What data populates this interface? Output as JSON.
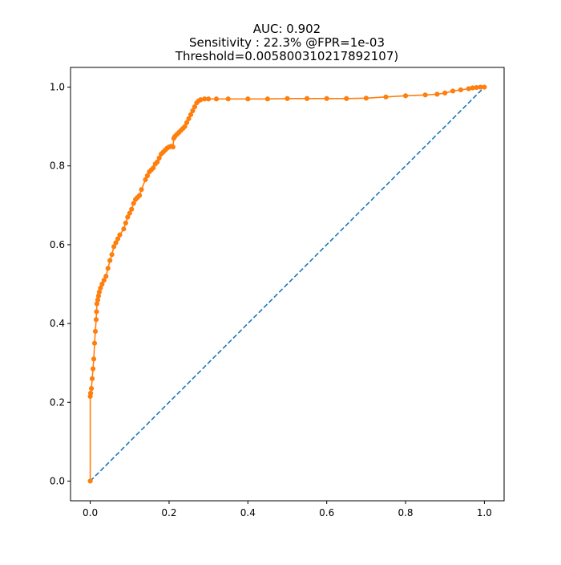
{
  "chart_data": {
    "type": "line",
    "title_lines": [
      "AUC: 0.902",
      "Sensitivity : 22.3% @FPR=1e-03",
      "Threshold=0.005800310217892107)"
    ],
    "xlabel": "",
    "ylabel": "",
    "xlim": [
      -0.05,
      1.05
    ],
    "ylim": [
      -0.05,
      1.05
    ],
    "xticks": [
      0.0,
      0.2,
      0.4,
      0.6,
      0.8,
      1.0
    ],
    "xtick_labels": [
      "0.0",
      "0.2",
      "0.4",
      "0.6",
      "0.8",
      "1.0"
    ],
    "yticks": [
      0.0,
      0.2,
      0.4,
      0.6,
      0.8,
      1.0
    ],
    "ytick_labels": [
      "0.0",
      "0.2",
      "0.4",
      "0.6",
      "0.8",
      "1.0"
    ],
    "grid": false,
    "legend": "none",
    "series": [
      {
        "style": "dashed",
        "color": "#1f77b4",
        "markers": false,
        "x": [
          0,
          1
        ],
        "y": [
          0,
          1
        ]
      },
      {
        "style": "solid",
        "color": "#ff7f0e",
        "markers": true,
        "x": [
          0,
          0,
          0.001,
          0.003,
          0.005,
          0.007,
          0.009,
          0.011,
          0.013,
          0.015,
          0.016,
          0.017,
          0.019,
          0.021,
          0.023,
          0.026,
          0.03,
          0.035,
          0.04,
          0.045,
          0.05,
          0.055,
          0.06,
          0.065,
          0.07,
          0.075,
          0.085,
          0.09,
          0.095,
          0.1,
          0.105,
          0.11,
          0.115,
          0.12,
          0.125,
          0.13,
          0.14,
          0.145,
          0.15,
          0.155,
          0.16,
          0.165,
          0.17,
          0.175,
          0.18,
          0.185,
          0.19,
          0.195,
          0.2,
          0.205,
          0.21,
          0.212,
          0.215,
          0.22,
          0.225,
          0.23,
          0.235,
          0.24,
          0.245,
          0.25,
          0.255,
          0.26,
          0.265,
          0.27,
          0.275,
          0.28,
          0.29,
          0.3,
          0.32,
          0.35,
          0.4,
          0.45,
          0.5,
          0.55,
          0.6,
          0.65,
          0.7,
          0.75,
          0.8,
          0.85,
          0.88,
          0.9,
          0.92,
          0.94,
          0.96,
          0.97,
          0.98,
          0.99,
          1.0
        ],
        "y": [
          0,
          0.215,
          0.223,
          0.235,
          0.26,
          0.285,
          0.31,
          0.35,
          0.38,
          0.41,
          0.43,
          0.45,
          0.46,
          0.47,
          0.48,
          0.49,
          0.5,
          0.51,
          0.52,
          0.54,
          0.56,
          0.575,
          0.595,
          0.605,
          0.615,
          0.625,
          0.64,
          0.655,
          0.67,
          0.68,
          0.69,
          0.705,
          0.715,
          0.72,
          0.725,
          0.74,
          0.765,
          0.775,
          0.785,
          0.79,
          0.795,
          0.805,
          0.81,
          0.82,
          0.83,
          0.835,
          0.84,
          0.845,
          0.848,
          0.85,
          0.848,
          0.87,
          0.875,
          0.88,
          0.885,
          0.89,
          0.895,
          0.9,
          0.91,
          0.92,
          0.93,
          0.94,
          0.95,
          0.96,
          0.965,
          0.968,
          0.97,
          0.97,
          0.97,
          0.97,
          0.97,
          0.97,
          0.971,
          0.971,
          0.971,
          0.971,
          0.972,
          0.975,
          0.978,
          0.98,
          0.982,
          0.985,
          0.99,
          0.993,
          0.996,
          0.998,
          0.999,
          1.0,
          1.0
        ]
      }
    ]
  }
}
